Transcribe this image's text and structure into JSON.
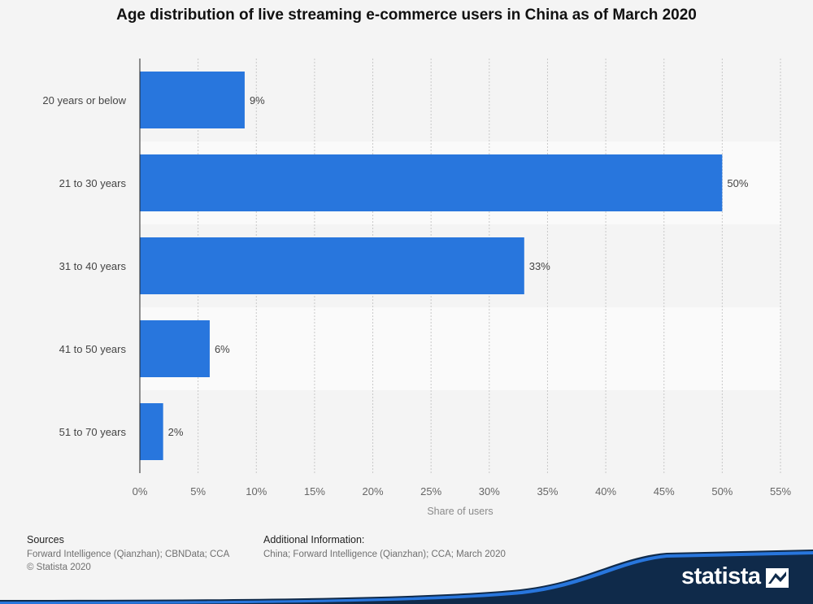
{
  "chart_data": {
    "type": "bar",
    "orientation": "horizontal",
    "title": "Age distribution of live streaming e-commerce users in China as of March 2020",
    "categories": [
      "20 years or below",
      "21 to 30 years",
      "31 to 40 years",
      "41 to 50 years",
      "51 to 70 years"
    ],
    "values": [
      9,
      50,
      33,
      6,
      2
    ],
    "value_labels": [
      "9%",
      "50%",
      "33%",
      "6%",
      "2%"
    ],
    "xlabel": "Share of users",
    "ylabel": "",
    "xlim": [
      0,
      55
    ],
    "xticks": [
      0,
      5,
      10,
      15,
      20,
      25,
      30,
      35,
      40,
      45,
      50,
      55
    ],
    "xtick_labels": [
      "0%",
      "5%",
      "10%",
      "15%",
      "20%",
      "25%",
      "30%",
      "35%",
      "40%",
      "45%",
      "50%",
      "55%"
    ],
    "grid": true,
    "bar_color": "#2876dd"
  },
  "footer": {
    "sources_heading": "Sources",
    "sources_text": "Forward Intelligence (Qianzhan); CBNData; CCA",
    "copyright": "© Statista 2020",
    "additional_heading": "Additional Information:",
    "additional_text": "China; Forward Intelligence (Qianzhan); CCA; March 2020"
  },
  "brand": {
    "name": "statista",
    "wave_color": "#0f2a4a",
    "accent_color": "#2876dd"
  }
}
